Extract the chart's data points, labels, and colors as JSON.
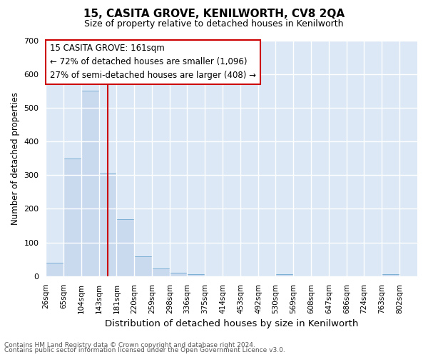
{
  "title": "15, CASITA GROVE, KENILWORTH, CV8 2QA",
  "subtitle": "Size of property relative to detached houses in Kenilworth",
  "xlabel": "Distribution of detached houses by size in Kenilworth",
  "ylabel": "Number of detached properties",
  "footer_line1": "Contains HM Land Registry data © Crown copyright and database right 2024.",
  "footer_line2": "Contains public sector information licensed under the Open Government Licence v3.0.",
  "annotation_line1": "15 CASITA GROVE: 161sqm",
  "annotation_line2": "← 72% of detached houses are smaller (1,096)",
  "annotation_line3": "27% of semi-detached houses are larger (408) →",
  "bar_edges": [
    26,
    65,
    104,
    143,
    181,
    220,
    259,
    298,
    336,
    375,
    414,
    453,
    492,
    530,
    569,
    608,
    647,
    686,
    724,
    763,
    802
  ],
  "bar_heights": [
    40,
    350,
    550,
    305,
    170,
    60,
    22,
    11,
    7,
    0,
    0,
    0,
    0,
    5,
    0,
    0,
    0,
    0,
    0,
    7
  ],
  "bar_color": "#c9d9ee",
  "bar_edge_color": "#7bafd4",
  "red_line_x": 161,
  "ylim": [
    0,
    700
  ],
  "yticks": [
    0,
    100,
    200,
    300,
    400,
    500,
    600,
    700
  ],
  "figure_bg": "#ffffff",
  "plot_bg": "#dce8f5",
  "grid_color": "#ffffff",
  "annotation_box_facecolor": "#ffffff",
  "annotation_box_edgecolor": "#cc0000",
  "red_line_color": "#cc0000",
  "footer_color": "#555555"
}
